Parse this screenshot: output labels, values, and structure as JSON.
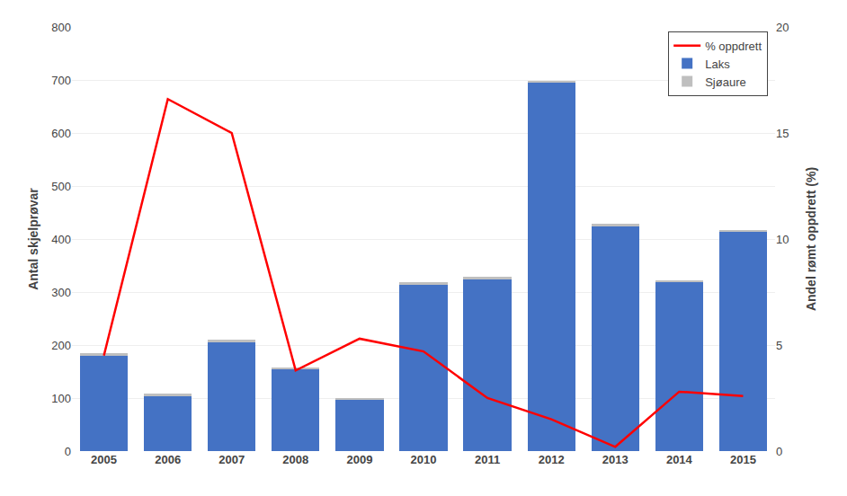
{
  "chart_data": {
    "type": "bar",
    "stacked": true,
    "categories": [
      "2005",
      "2006",
      "2007",
      "2008",
      "2009",
      "2010",
      "2011",
      "2012",
      "2013",
      "2014",
      "2015"
    ],
    "series": [
      {
        "name": "Laks",
        "color": "#4472C4",
        "values": [
          180,
          105,
          205,
          155,
          98,
          315,
          325,
          695,
          425,
          320,
          415
        ]
      },
      {
        "name": "Sjøaure",
        "color": "#BFBFBF",
        "values": [
          5,
          3,
          5,
          2,
          1,
          3,
          3,
          3,
          3,
          2,
          2
        ]
      },
      {
        "name": "% oppdrett",
        "type": "line",
        "axis": "y2",
        "color": "#FF0000",
        "values": [
          4.5,
          16.6,
          15.0,
          3.8,
          5.3,
          4.7,
          2.5,
          1.5,
          0.2,
          2.8,
          2.6
        ]
      }
    ],
    "ylabel": "Antal skjelprøvar",
    "y2label": "Andel rømt oppdrett (%)",
    "ylim": [
      0,
      800
    ],
    "yticks": [
      0,
      100,
      200,
      300,
      400,
      500,
      600,
      700,
      800
    ],
    "y2lim": [
      0,
      20
    ],
    "y2ticks": [
      0,
      5,
      10,
      15,
      20
    ],
    "grid": true,
    "legend": "upper right"
  }
}
